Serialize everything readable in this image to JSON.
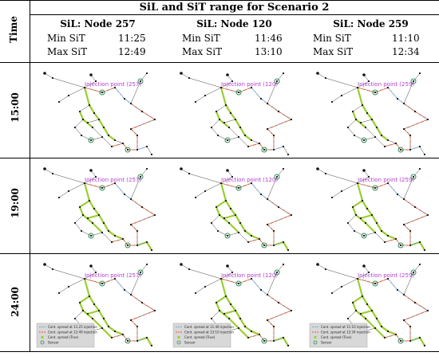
{
  "title": "SiL and SiT range for Scenario 2",
  "header": {
    "time_label": "Time",
    "columns": [
      {
        "label": "SiL: Node 257",
        "min_label": "Min SiT",
        "min_value": "11:25",
        "max_label": "Max SiT",
        "max_value": "12:49",
        "injection": "Injection point (257)"
      },
      {
        "label": "SiL: Node 120",
        "min_label": "Min SiT",
        "min_value": "11:46",
        "max_label": "Max SiT",
        "max_value": "13:10",
        "injection": "Injection point (120)"
      },
      {
        "label": "SiL: Node 259",
        "min_label": "Min SiT",
        "min_value": "11:10",
        "max_label": "Max SiT",
        "max_value": "12:34",
        "injection": "Injection point (259)"
      }
    ]
  },
  "rows": [
    {
      "time": "15:00"
    },
    {
      "time": "19:00"
    },
    {
      "time": "24:00"
    }
  ],
  "legends": [
    [
      "Cont. spread at 11:25 injection",
      "Cont. spread at 12:49 injection",
      "Cont. spread (True)",
      "Sensor"
    ],
    [
      "Cont. spread at 11:46 injection",
      "Cont. spread at 13:10 injection",
      "Cont. spread (True)",
      "Sensor"
    ],
    [
      "Cont. spread at 11:10 injection",
      "Cont. spread at 12:34 injection",
      "Cont. spread (True)",
      "Sensor"
    ]
  ],
  "colors": {
    "accent_purple": "#b040d0",
    "spread_true": "#9acd32",
    "spread_min": "#6fa8dc",
    "spread_max": "#e06030",
    "node": "#111111",
    "sensor": "#2e8b57"
  }
}
